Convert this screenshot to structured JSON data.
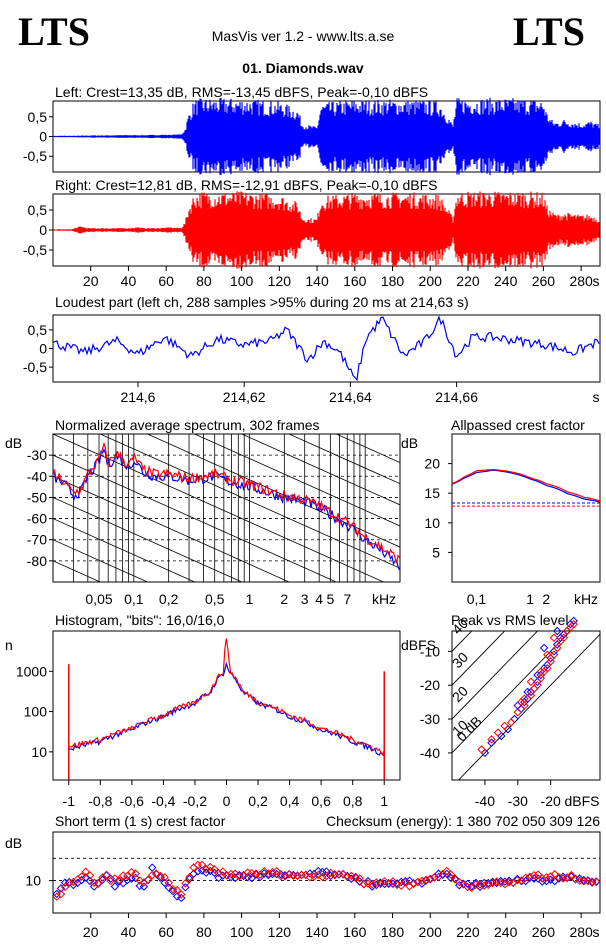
{
  "header": {
    "logo_left": "LTS",
    "logo_right": "LTS",
    "app_title": "MasVis ver 1.2 - www.lts.a.se",
    "file_title": "01. Diamonds.wav"
  },
  "colors": {
    "left": "#0000ff",
    "right": "#ff0000",
    "axis": "#000000"
  },
  "chart_data": [
    {
      "id": "left_waveform",
      "type": "area",
      "title": "Left: Crest=13,35 dB, RMS=-13,45 dBFS, Peak=-0,10 dBFS",
      "ylim": [
        -0.9,
        0.9
      ],
      "y_ticks": [
        "0,5",
        "0",
        "-0,5"
      ],
      "y_tick_values": [
        0.5,
        0,
        -0.5
      ],
      "xlim": [
        0,
        290
      ],
      "envelope_t": [
        0,
        10,
        20,
        40,
        50,
        60,
        62,
        64,
        66,
        68,
        70,
        72,
        75,
        80,
        100,
        120,
        130,
        132,
        135,
        140,
        142,
        160,
        190,
        205,
        210,
        212,
        214,
        216,
        250,
        260,
        262,
        265,
        268,
        270,
        275,
        280,
        285,
        290
      ],
      "envelope_a": [
        0.02,
        0.02,
        0.03,
        0.04,
        0.04,
        0.05,
        0.05,
        0.05,
        0.06,
        0.06,
        0.2,
        0.6,
        0.95,
        0.98,
        0.98,
        0.9,
        0.7,
        0.35,
        0.3,
        0.25,
        0.85,
        0.95,
        0.95,
        0.9,
        0.5,
        0.3,
        0.98,
        0.99,
        0.98,
        0.95,
        0.6,
        0.4,
        0.38,
        0.45,
        0.4,
        0.35,
        0.4,
        0.3
      ]
    },
    {
      "id": "right_waveform",
      "type": "area",
      "title": "Right: Crest=12,81 dB, RMS=-12,91 dBFS, Peak=-0,10 dBFS",
      "ylim": [
        -0.9,
        0.9
      ],
      "y_ticks": [
        "0,5",
        "0",
        "-0,5"
      ],
      "y_tick_values": [
        0.5,
        0,
        -0.5
      ],
      "xlim": [
        0,
        290
      ],
      "x_ticks": [
        "20",
        "40",
        "60",
        "80",
        "100",
        "120",
        "140",
        "160",
        "180",
        "200",
        "220",
        "240",
        "260",
        "280"
      ],
      "x_tick_values": [
        20,
        40,
        60,
        80,
        100,
        120,
        140,
        160,
        180,
        200,
        220,
        240,
        260,
        280
      ],
      "x_unit": "s",
      "envelope_t": [
        0,
        10,
        12,
        15,
        18,
        20,
        40,
        45,
        48,
        50,
        60,
        62,
        64,
        66,
        68,
        70,
        72,
        75,
        80,
        100,
        120,
        130,
        132,
        135,
        140,
        142,
        160,
        190,
        205,
        210,
        212,
        214,
        216,
        250,
        260,
        262,
        265,
        268,
        270,
        275,
        280,
        285,
        290
      ],
      "envelope_a": [
        0.02,
        0.02,
        0.06,
        0.1,
        0.05,
        0.05,
        0.05,
        0.08,
        0.05,
        0.05,
        0.06,
        0.08,
        0.06,
        0.06,
        0.06,
        0.2,
        0.6,
        0.95,
        0.98,
        0.98,
        0.9,
        0.7,
        0.35,
        0.3,
        0.3,
        0.85,
        0.95,
        0.95,
        0.9,
        0.5,
        0.3,
        0.98,
        0.99,
        0.98,
        0.95,
        0.6,
        0.45,
        0.4,
        0.45,
        0.42,
        0.38,
        0.4,
        0.3
      ]
    },
    {
      "id": "loudest_part",
      "type": "line",
      "title": "Loudest part (left  ch, 288 samples >95% during 20 ms at 214,63 s)",
      "ylim": [
        -0.9,
        0.9
      ],
      "y_ticks": [
        "0,5",
        "0",
        "-0,5"
      ],
      "y_tick_values": [
        0.5,
        0,
        -0.5
      ],
      "xlim": [
        214.584,
        214.687
      ],
      "x_ticks": [
        "214,6",
        "214,62",
        "214,64",
        "214,66"
      ],
      "x_tick_values": [
        214.6,
        214.62,
        214.64,
        214.66
      ],
      "x_unit": "s",
      "x": [
        214.584,
        214.59,
        214.596,
        214.6,
        214.605,
        214.61,
        214.615,
        214.62,
        214.625,
        214.628,
        214.632,
        214.635,
        214.638,
        214.641,
        214.643,
        214.646,
        214.65,
        214.654,
        214.657,
        214.66,
        214.663,
        214.667,
        214.672,
        214.677,
        214.682,
        214.687
      ],
      "y": [
        0.15,
        -0.1,
        0.2,
        -0.15,
        0.3,
        -0.2,
        0.25,
        0.1,
        0.2,
        0.5,
        -0.3,
        0.2,
        -0.1,
        -0.9,
        0.3,
        0.8,
        -0.2,
        0.2,
        0.8,
        -0.2,
        0.3,
        0.3,
        0.2,
        0.1,
        -0.1,
        0.2
      ]
    },
    {
      "id": "avg_spectrum",
      "type": "line",
      "title": "Normalized average spectrum, 302 frames",
      "ylabel": "dB",
      "ylim": [
        -90,
        -20
      ],
      "y_ticks": [
        "-30",
        "-40",
        "-50",
        "-60",
        "-70",
        "-80"
      ],
      "y_tick_values": [
        -30,
        -40,
        -50,
        -60,
        -70,
        -80
      ],
      "x_scale": "log",
      "xlim": [
        0.02,
        20
      ],
      "x_ticks": [
        "0,05",
        "0,1",
        "0,2",
        "0,5",
        "1",
        "2",
        "3",
        "4",
        "5",
        "7"
      ],
      "x_tick_values": [
        0.05,
        0.1,
        0.2,
        0.5,
        1,
        2,
        3,
        4,
        5,
        7
      ],
      "x_unit": "kHz",
      "series": [
        {
          "channel": "left",
          "x": [
            0.02,
            0.025,
            0.03,
            0.035,
            0.04,
            0.05,
            0.055,
            0.06,
            0.07,
            0.09,
            0.1,
            0.12,
            0.15,
            0.2,
            0.3,
            0.5,
            0.7,
            1,
            1.5,
            2,
            3,
            4,
            5,
            7,
            10,
            15,
            20
          ],
          "y": [
            -40,
            -44,
            -49,
            -47,
            -40,
            -33,
            -27,
            -35,
            -30,
            -36,
            -32,
            -38,
            -40,
            -40,
            -42,
            -40,
            -43,
            -45,
            -48,
            -50,
            -52,
            -55,
            -58,
            -63,
            -70,
            -77,
            -83
          ]
        },
        {
          "channel": "right",
          "x": [
            0.02,
            0.025,
            0.03,
            0.035,
            0.04,
            0.05,
            0.055,
            0.06,
            0.07,
            0.09,
            0.1,
            0.12,
            0.15,
            0.2,
            0.3,
            0.5,
            0.7,
            1,
            1.5,
            2,
            3,
            4,
            5,
            7,
            10,
            15,
            20
          ],
          "y": [
            -39,
            -43,
            -48,
            -46,
            -39,
            -32,
            -26,
            -34,
            -29,
            -35,
            -31,
            -37,
            -39,
            -39,
            -41,
            -39,
            -42,
            -44,
            -47,
            -49,
            -51,
            -54,
            -57,
            -62,
            -69,
            -75,
            -80
          ]
        }
      ]
    },
    {
      "id": "allpassed_crest",
      "type": "line",
      "title": "Allpassed crest factor",
      "ylabel": "dB",
      "ylim": [
        0,
        25
      ],
      "y_ticks": [
        "20",
        "15",
        "10",
        "5"
      ],
      "y_tick_values": [
        20,
        15,
        10,
        5
      ],
      "x_scale": "log",
      "xlim": [
        0.035,
        20
      ],
      "x_ticks": [
        "0,1",
        "1",
        "2",
        "kHz"
      ],
      "x_tick_values": [
        0.1,
        1,
        2
      ],
      "series": [
        {
          "channel": "left",
          "x": [
            0.035,
            0.06,
            0.1,
            0.2,
            0.5,
            1,
            2,
            5,
            10,
            20
          ],
          "y": [
            16.5,
            17.6,
            18.5,
            18.9,
            18.3,
            17.4,
            16.3,
            14.9,
            14.0,
            13.5
          ]
        },
        {
          "channel": "right",
          "x": [
            0.035,
            0.06,
            0.1,
            0.2,
            0.5,
            1,
            2,
            5,
            10,
            20
          ],
          "y": [
            16.6,
            17.8,
            18.8,
            19.0,
            18.5,
            17.6,
            16.6,
            15.2,
            14.3,
            13.7
          ]
        }
      ],
      "reference_lines": [
        {
          "channel": "left",
          "y": 13.35
        },
        {
          "channel": "right",
          "y": 12.81
        }
      ]
    },
    {
      "id": "histogram",
      "type": "line",
      "title": "Histogram, \"bits\": 16,0/16,0",
      "ylabel": "n",
      "y_scale": "log",
      "ylim": [
        2,
        10000
      ],
      "y_ticks": [
        "1000",
        "100",
        "10"
      ],
      "y_tick_values": [
        1000,
        100,
        10
      ],
      "xlim": [
        -1.1,
        1.1
      ],
      "x_ticks": [
        "-1",
        "-0,8",
        "-0,6",
        "-0,4",
        "-0,2",
        "0",
        "0,2",
        "0,4",
        "0,6",
        "0,8",
        "1"
      ],
      "x_tick_values": [
        -1,
        -0.8,
        -0.6,
        -0.4,
        -0.2,
        0,
        0.2,
        0.4,
        0.6,
        0.8,
        1
      ],
      "series": [
        {
          "channel": "left",
          "x": [
            -0.98,
            -0.8,
            -0.6,
            -0.4,
            -0.2,
            -0.1,
            -0.02,
            0,
            0.02,
            0.1,
            0.2,
            0.4,
            0.6,
            0.8,
            0.98
          ],
          "y": [
            12,
            18,
            35,
            75,
            160,
            300,
            900,
            1500,
            900,
            300,
            160,
            75,
            35,
            18,
            9
          ]
        },
        {
          "channel": "right",
          "x": [
            -0.98,
            -0.8,
            -0.6,
            -0.4,
            -0.2,
            -0.1,
            -0.02,
            0,
            0.02,
            0.1,
            0.2,
            0.4,
            0.6,
            0.8,
            0.98
          ],
          "y": [
            14,
            20,
            38,
            80,
            170,
            320,
            1000,
            6000,
            1000,
            320,
            170,
            80,
            38,
            20,
            10
          ]
        }
      ],
      "clip_spikes": [
        {
          "x": -1,
          "y": 1500
        },
        {
          "x": 1,
          "y": 1000
        }
      ]
    },
    {
      "id": "peak_vs_rms",
      "type": "scatter",
      "title": "Peak vs RMS level",
      "ylabel": "dBFS",
      "xlabel": "dBFS",
      "xlim": [
        -50,
        -5
      ],
      "ylim": [
        -48,
        -4
      ],
      "x_ticks": [
        "-40",
        "-30",
        "-20"
      ],
      "x_tick_values": [
        -40,
        -30,
        -20
      ],
      "y_ticks": [
        "-10",
        "-20",
        "-30",
        "-40"
      ],
      "y_tick_values": [
        -10,
        -20,
        -30,
        -40
      ],
      "crest_line_labels": [
        "40",
        "30",
        "20",
        "10",
        "0 dB"
      ],
      "crest_line_values": [
        40,
        30,
        20,
        10,
        0
      ],
      "series": [
        {
          "channel": "left",
          "x": [
            -30,
            -28,
            -27,
            -26,
            -25,
            -24,
            -23,
            -22,
            -21,
            -20,
            -19,
            -18,
            -17,
            -16,
            -15,
            -14,
            -13,
            -18,
            -22,
            -24,
            -27,
            -29,
            -31,
            -33,
            -35,
            -38,
            -40
          ],
          "y": [
            -26,
            -25,
            -24,
            -22,
            -21,
            -19,
            -17,
            -15,
            -14,
            -12,
            -10,
            -8,
            -6,
            -5,
            -4,
            -2,
            -1,
            -4,
            -9,
            -17,
            -22,
            -27,
            -30,
            -33,
            -35,
            -37,
            -40
          ]
        },
        {
          "channel": "right",
          "x": [
            -29,
            -28,
            -26,
            -25,
            -24,
            -23,
            -22,
            -21,
            -20,
            -19,
            -18,
            -17,
            -16,
            -15,
            -14,
            -13,
            -19,
            -21,
            -23,
            -26,
            -28,
            -30,
            -32,
            -34,
            -36,
            -38,
            -41
          ],
          "y": [
            -25,
            -26,
            -23,
            -21,
            -20,
            -18,
            -16,
            -15,
            -13,
            -11,
            -9,
            -7,
            -6,
            -4,
            -3,
            -2,
            -6,
            -11,
            -16,
            -19,
            -24,
            -28,
            -31,
            -32,
            -34,
            -36,
            -39
          ]
        }
      ]
    },
    {
      "id": "short_term_crest",
      "type": "scatter",
      "title": "Short term (1 s) crest factor",
      "annotation": "Checksum (energy):  1 380 702 050 309 126",
      "ylabel": "dB",
      "ylim": [
        2,
        22
      ],
      "y_ticks": [
        "10"
      ],
      "y_tick_values": [
        10
      ],
      "dashed_lines": [
        10,
        15.5
      ],
      "xlim": [
        0,
        290
      ],
      "x_ticks": [
        "20",
        "40",
        "60",
        "80",
        "100",
        "120",
        "140",
        "160",
        "180",
        "200",
        "220",
        "240",
        "260",
        "280"
      ],
      "x_tick_values": [
        20,
        40,
        60,
        80,
        100,
        120,
        140,
        160,
        180,
        200,
        220,
        240,
        260,
        280
      ],
      "x_unit": "s",
      "series": [
        {
          "channel": "left",
          "x": [
            3,
            8,
            13,
            18,
            23,
            28,
            33,
            38,
            43,
            48,
            53,
            58,
            63,
            68,
            73,
            78,
            83,
            88,
            95,
            105,
            115,
            125,
            135,
            145,
            150,
            155,
            160,
            165,
            170,
            180,
            190,
            200,
            205,
            210,
            215,
            220,
            230,
            240,
            250,
            255,
            260,
            265,
            270,
            280,
            290
          ],
          "y": [
            7,
            10,
            9,
            11,
            8,
            12,
            9,
            10,
            11,
            8,
            13,
            10,
            7,
            6,
            11,
            13,
            12,
            11,
            11,
            11,
            11.5,
            11,
            11.5,
            12,
            11,
            11,
            11,
            9.5,
            9,
            9,
            9.5,
            10,
            12,
            11.5,
            9,
            9,
            9,
            9.5,
            10,
            11,
            10,
            10,
            11,
            10,
            9
          ]
        },
        {
          "channel": "right",
          "x": [
            3,
            8,
            13,
            18,
            23,
            28,
            33,
            38,
            43,
            48,
            53,
            58,
            63,
            68,
            73,
            78,
            83,
            88,
            95,
            105,
            115,
            125,
            135,
            145,
            150,
            155,
            160,
            165,
            170,
            180,
            190,
            200,
            205,
            210,
            215,
            220,
            230,
            240,
            250,
            255,
            260,
            265,
            270,
            280,
            290
          ],
          "y": [
            6.5,
            9,
            10,
            12,
            9,
            11,
            10,
            11,
            12,
            9,
            12,
            11,
            8,
            6.5,
            12,
            14,
            13,
            12,
            11.5,
            11.5,
            12,
            11.5,
            11,
            11.5,
            12,
            11.5,
            11,
            9,
            9.5,
            9.5,
            9,
            10.5,
            11.5,
            12,
            9.5,
            8.5,
            9.5,
            9,
            10.5,
            11.5,
            10.5,
            11,
            11,
            10.5,
            9.5
          ]
        }
      ]
    }
  ]
}
